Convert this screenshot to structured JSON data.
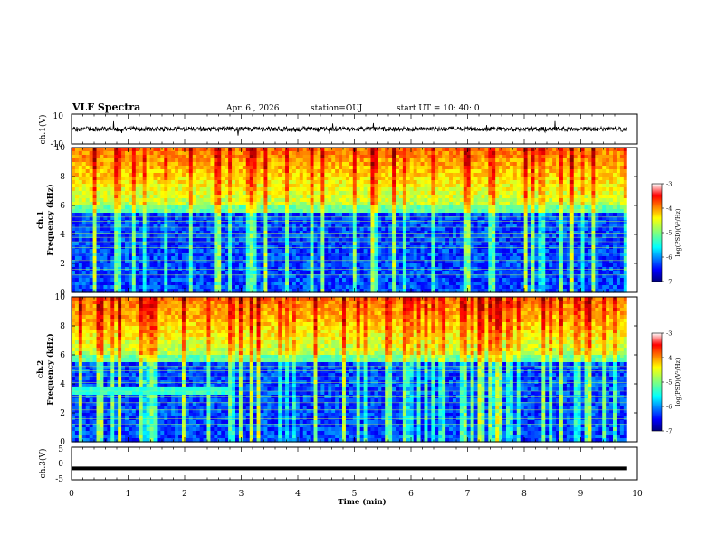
{
  "header": {
    "title": "VLF Spectra",
    "date": "Apr. 6 , 2026",
    "station": "station=OUJ",
    "start_ut": "start UT = 10: 40: 0"
  },
  "chart_data": [
    {
      "type": "line",
      "panel": "ch1-waveform",
      "ylabel": "ch.1(V)",
      "ylim": [
        -10,
        10
      ],
      "ytick_labels": [
        "10",
        "-10"
      ],
      "xlim": [
        0,
        10
      ],
      "baseline_value": 0,
      "data_end_min": 9.82
    },
    {
      "type": "heatmap",
      "panel": "ch1-spectrogram",
      "ylabel": "Frequency (kHz)",
      "channel_label": "ch.1",
      "ylim": [
        0,
        10
      ],
      "yticks": [
        "0",
        "2",
        "4",
        "6",
        "8",
        "10"
      ],
      "xlim": [
        0,
        10
      ],
      "data_end_min": 9.82,
      "colorbar": {
        "label": "log(PSD)(V²/Hz)",
        "range": [
          -7,
          -3
        ],
        "tick_labels": [
          "-3",
          "-4",
          "-5",
          "-6",
          "-7"
        ]
      }
    },
    {
      "type": "heatmap",
      "panel": "ch2-spectrogram",
      "ylabel": "Frequency (kHz)",
      "channel_label": "ch.2",
      "ylim": [
        0,
        10
      ],
      "yticks": [
        "0",
        "2",
        "4",
        "6",
        "8",
        "10"
      ],
      "xlim": [
        0,
        10
      ],
      "data_end_min": 9.82,
      "colorbar": {
        "label": "log(PSD)(V²/Hz)",
        "range": [
          -7,
          -3
        ],
        "tick_labels": [
          "-3",
          "-4",
          "-5",
          "-6",
          "-7"
        ]
      }
    },
    {
      "type": "line",
      "panel": "ch3-waveform",
      "ylabel": "ch.3(V)",
      "ylim": [
        -5,
        5
      ],
      "ytick_labels": [
        "5",
        "0",
        "-5"
      ],
      "xlim": [
        0,
        10
      ],
      "baseline_value": -1.5,
      "data_end_min": 9.82
    }
  ],
  "xaxis": {
    "label": "Time (min)",
    "ticks": [
      "0",
      "1",
      "2",
      "3",
      "4",
      "5",
      "6",
      "7",
      "8",
      "9",
      "10"
    ]
  },
  "colors": {
    "jet": [
      "#00007f",
      "#0000ff",
      "#007fff",
      "#00ffff",
      "#7fff7f",
      "#ffff00",
      "#ff7f00",
      "#ff0000",
      "#7f0000"
    ]
  }
}
